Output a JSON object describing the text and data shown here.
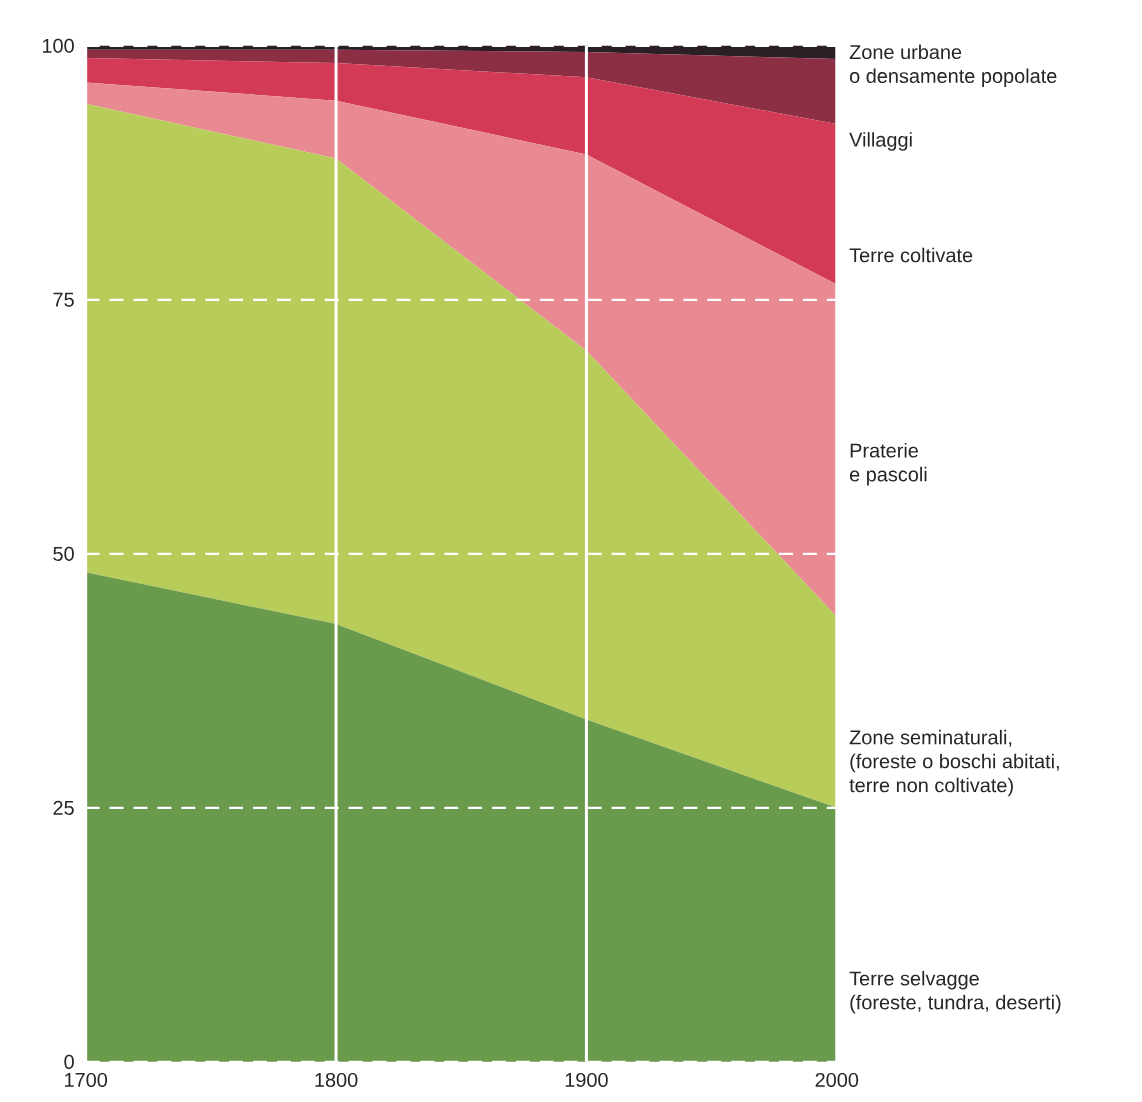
{
  "chart_data": {
    "type": "area",
    "stacked": true,
    "x": [
      1700,
      1800,
      1900,
      2000
    ],
    "xlim": [
      1700,
      2000
    ],
    "xticks": [
      1700,
      1800,
      1900,
      2000
    ],
    "ylim": [
      0,
      100
    ],
    "yticks": [
      0,
      25,
      50,
      75,
      100
    ],
    "grid": true,
    "series": [
      {
        "name": "Terre selvagge\n(foreste, tundra, deserti)",
        "color": "#6a9a4c",
        "values": [
          48.2,
          43.1,
          33.7,
          25.0
        ]
      },
      {
        "name": "Zone seminaturali,\n(foreste o boschi abitati,\nterre non coltivate)",
        "color": "#b8cc5a",
        "values": [
          46.1,
          45.8,
          36.3,
          18.8
        ]
      },
      {
        "name": "Praterie\ne pascoli",
        "color": "#e98a93",
        "values": [
          2.1,
          5.7,
          19.3,
          32.7
        ]
      },
      {
        "name": "Terre coltivate",
        "color": "#d23a55",
        "values": [
          2.4,
          3.7,
          7.6,
          15.8
        ]
      },
      {
        "name": "Villaggi",
        "color": "#8c2f45",
        "values": [
          0.8,
          1.3,
          2.5,
          6.4
        ]
      },
      {
        "name": "Zone urbane\no densamente popolate",
        "color": "#2a1f25",
        "values": [
          0.4,
          0.4,
          0.6,
          1.3
        ]
      }
    ]
  }
}
